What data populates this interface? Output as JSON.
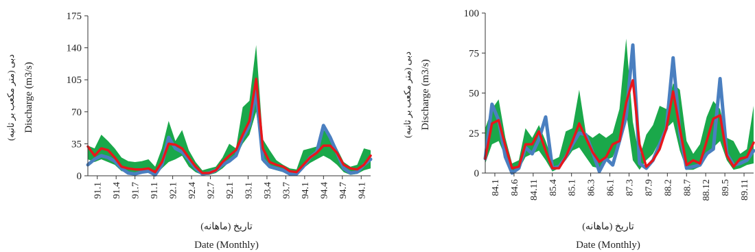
{
  "chart_data": [
    {
      "type": "area",
      "title": "",
      "ylabel": "Discharge (m3/s)",
      "ylabel_fa": "دبی (متر مکعب بر ثانیه)",
      "xlabel": "Date (Monthly)",
      "xlabel_fa": "تاریخ (ماهانه)",
      "ylim": [
        0,
        175
      ],
      "yticks": [
        0,
        35,
        70,
        105,
        140,
        175
      ],
      "xticks": [
        "91.1",
        "91.4",
        "91.7",
        "91.1",
        "92.1",
        "92.4",
        "92.7",
        "92.1",
        "93.1",
        "93.4",
        "93.7",
        "94.1",
        "94.4",
        "94.7",
        "94.1"
      ],
      "grid": false,
      "colors": {
        "band": "#1aa84a",
        "observed": "#4a7fc0",
        "simulated": "#e8161b"
      },
      "series": [
        {
          "role": "band",
          "upper": [
            33,
            30,
            45,
            38,
            30,
            20,
            16,
            15,
            16,
            18,
            10,
            30,
            60,
            38,
            50,
            28,
            15,
            6,
            8,
            10,
            20,
            35,
            30,
            75,
            82,
            143,
            40,
            28,
            17,
            12,
            8,
            7,
            28,
            30,
            32,
            50,
            45,
            30,
            15,
            10,
            12,
            30,
            28
          ],
          "lower": [
            18,
            15,
            18,
            15,
            12,
            5,
            4,
            3,
            5,
            5,
            0,
            8,
            15,
            18,
            22,
            10,
            4,
            1,
            1,
            3,
            8,
            15,
            20,
            35,
            45,
            70,
            15,
            8,
            6,
            4,
            1,
            1,
            8,
            14,
            18,
            22,
            18,
            12,
            4,
            1,
            2,
            6,
            8
          ]
        },
        {
          "role": "observed",
          "values": [
            12,
            18,
            22,
            20,
            16,
            8,
            3,
            2,
            4,
            5,
            1,
            12,
            42,
            30,
            26,
            18,
            8,
            2,
            3,
            6,
            12,
            16,
            22,
            42,
            55,
            92,
            18,
            10,
            8,
            6,
            2,
            2,
            10,
            20,
            26,
            55,
            42,
            25,
            8,
            3,
            4,
            12,
            18
          ]
        },
        {
          "role": "simulated",
          "values": [
            32,
            22,
            30,
            28,
            20,
            10,
            8,
            7,
            7,
            8,
            4,
            15,
            35,
            34,
            30,
            20,
            10,
            3,
            3,
            6,
            15,
            22,
            28,
            45,
            60,
            106,
            30,
            15,
            12,
            10,
            5,
            4,
            12,
            20,
            25,
            33,
            33,
            25,
            12,
            8,
            7,
            12,
            22
          ]
        }
      ]
    },
    {
      "type": "area",
      "title": "",
      "ylabel": "Discharge (m3/s)",
      "ylabel_fa": "دبی (متر مکعب بر ثانیه)",
      "xlabel": "Date (Monthly)",
      "xlabel_fa": "تاریخ (ماهانه)",
      "ylim": [
        0,
        100
      ],
      "yticks": [
        0,
        25,
        50,
        75,
        100
      ],
      "xticks": [
        "84.1",
        "84.6",
        "84.11",
        "85.4",
        "85.1",
        "86.3",
        "86.1",
        "87.3",
        "87.9",
        "88.2",
        "88.7",
        "88.12",
        "89.5",
        "89.11"
      ],
      "grid": false,
      "colors": {
        "band": "#1aa84a",
        "observed": "#4a7fc0",
        "simulated": "#e8161b"
      },
      "series": [
        {
          "role": "band",
          "upper": [
            28,
            40,
            46,
            22,
            6,
            8,
            28,
            22,
            30,
            20,
            8,
            10,
            26,
            28,
            52,
            25,
            22,
            25,
            22,
            25,
            40,
            84,
            32,
            10,
            24,
            30,
            42,
            40,
            56,
            52,
            20,
            12,
            18,
            35,
            45,
            40,
            22,
            20,
            12,
            15,
            42
          ],
          "lower": [
            6,
            18,
            20,
            10,
            1,
            2,
            10,
            12,
            14,
            8,
            1,
            3,
            8,
            14,
            16,
            10,
            4,
            3,
            8,
            10,
            20,
            38,
            8,
            2,
            8,
            12,
            20,
            28,
            32,
            14,
            2,
            2,
            4,
            10,
            16,
            20,
            8,
            2,
            3,
            5,
            6
          ]
        },
        {
          "role": "observed",
          "values": [
            9,
            43,
            33,
            10,
            0,
            3,
            16,
            12,
            21,
            35,
            3,
            4,
            10,
            18,
            25,
            24,
            13,
            1,
            9,
            5,
            20,
            35,
            80,
            6,
            3,
            8,
            18,
            28,
            72,
            25,
            3,
            4,
            5,
            12,
            15,
            59,
            12,
            5,
            6,
            8,
            14
          ]
        },
        {
          "role": "simulated",
          "values": [
            9,
            31,
            33,
            17,
            3,
            4,
            18,
            18,
            26,
            14,
            3,
            3,
            10,
            20,
            31,
            22,
            13,
            7,
            10,
            18,
            20,
            44,
            58,
            18,
            4,
            8,
            15,
            28,
            51,
            28,
            5,
            8,
            6,
            20,
            34,
            36,
            11,
            4,
            9,
            10,
            19
          ]
        }
      ]
    }
  ]
}
